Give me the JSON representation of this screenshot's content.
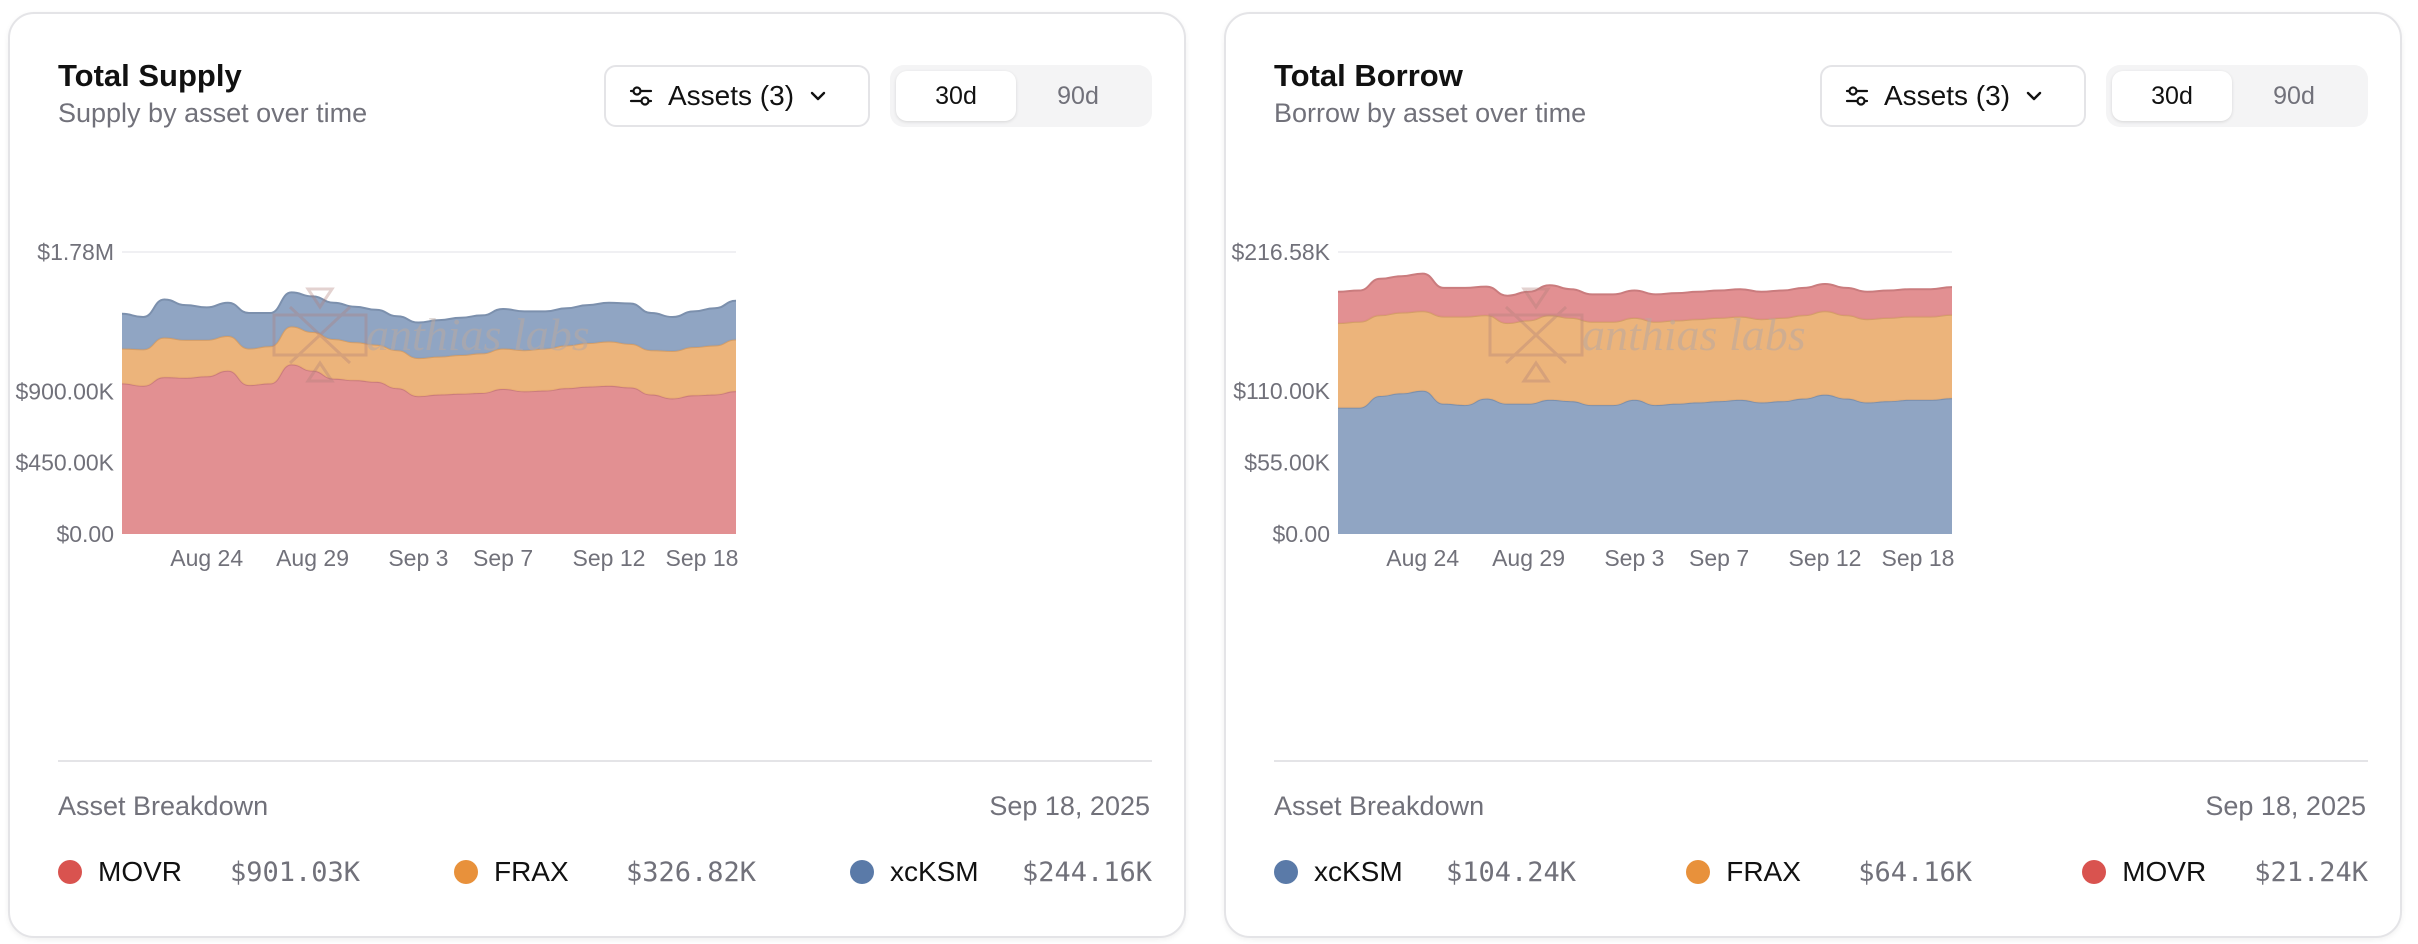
{
  "panels": [
    {
      "id": "supply",
      "title": "Total Supply",
      "subtitle": "Supply by asset over time",
      "assets_label": "Assets (3)",
      "ranges": [
        "30d",
        "90d"
      ],
      "active_range": "30d",
      "breakdown_label": "Asset Breakdown",
      "breakdown_date": "Sep 18, 2025",
      "legend": [
        {
          "name": "MOVR",
          "value": "$901.03K",
          "color": "#d9534f"
        },
        {
          "name": "FRAX",
          "value": "$326.82K",
          "color": "#e8913b"
        },
        {
          "name": "xcKSM",
          "value": "$244.16K",
          "color": "#5a7aa8"
        }
      ]
    },
    {
      "id": "borrow",
      "title": "Total Borrow",
      "subtitle": "Borrow by asset over time",
      "assets_label": "Assets (3)",
      "ranges": [
        "30d",
        "90d"
      ],
      "active_range": "30d",
      "breakdown_label": "Asset Breakdown",
      "breakdown_date": "Sep 18, 2025",
      "legend": [
        {
          "name": "xcKSM",
          "value": "$104.24K",
          "color": "#5a7aa8"
        },
        {
          "name": "FRAX",
          "value": "$64.16K",
          "color": "#e8913b"
        },
        {
          "name": "MOVR",
          "value": "$21.24K",
          "color": "#d9534f"
        }
      ]
    }
  ],
  "watermark": "anthias labs",
  "chart_data": [
    {
      "type": "area",
      "stacked": true,
      "title": "Total Supply",
      "x_labels": [
        "Aug 24",
        "Aug 29",
        "Sep 3",
        "Sep 7",
        "Sep 12",
        "Sep 18"
      ],
      "x_label_index": [
        4,
        9,
        14,
        18,
        23,
        28
      ],
      "y_ticks": [
        {
          "value": 0,
          "label": "$0.00"
        },
        {
          "value": 450000,
          "label": "$450.00K"
        },
        {
          "value": 900000,
          "label": "$900.00K"
        },
        {
          "value": 1780000,
          "label": "$1.78M"
        }
      ],
      "ylim": [
        0,
        1780000
      ],
      "colors": {
        "MOVR": "#e08a8c",
        "FRAX": "#ebb074",
        "xcKSM": "#8aa0c0"
      },
      "series": [
        {
          "name": "MOVR",
          "values": [
            950000,
            935000,
            990000,
            985000,
            995000,
            1030000,
            940000,
            950000,
            1070000,
            1030000,
            980000,
            970000,
            960000,
            920000,
            870000,
            880000,
            885000,
            890000,
            915000,
            900000,
            905000,
            920000,
            930000,
            935000,
            925000,
            880000,
            855000,
            875000,
            880000,
            901030
          ]
        },
        {
          "name": "FRAX",
          "values": [
            220000,
            230000,
            250000,
            240000,
            230000,
            220000,
            230000,
            235000,
            240000,
            245000,
            250000,
            240000,
            235000,
            240000,
            240000,
            240000,
            245000,
            250000,
            255000,
            260000,
            265000,
            270000,
            275000,
            280000,
            275000,
            280000,
            300000,
            305000,
            310000,
            326820
          ]
        },
        {
          "name": "xcKSM",
          "values": [
            220000,
            205000,
            240000,
            220000,
            205000,
            210000,
            225000,
            210000,
            215000,
            225000,
            230000,
            225000,
            220000,
            215000,
            225000,
            230000,
            235000,
            240000,
            250000,
            245000,
            235000,
            235000,
            240000,
            245000,
            255000,
            235000,
            215000,
            225000,
            235000,
            244160
          ]
        }
      ]
    },
    {
      "type": "area",
      "stacked": true,
      "title": "Total Borrow",
      "x_labels": [
        "Aug 24",
        "Aug 29",
        "Sep 3",
        "Sep 7",
        "Sep 12",
        "Sep 18"
      ],
      "x_label_index": [
        4,
        9,
        14,
        18,
        23,
        28
      ],
      "y_ticks": [
        {
          "value": 0,
          "label": "$0.00"
        },
        {
          "value": 55000,
          "label": "$55.00K"
        },
        {
          "value": 110000,
          "label": "$110.00K"
        },
        {
          "value": 216580,
          "label": "$216.58K"
        }
      ],
      "ylim": [
        0,
        216580
      ],
      "colors": {
        "xcKSM": "#8aa0c0",
        "FRAX": "#ebb074",
        "MOVR": "#e08a8c"
      },
      "series": [
        {
          "name": "xcKSM",
          "values": [
            97000,
            97000,
            106000,
            108000,
            110000,
            100000,
            99000,
            104000,
            100000,
            100000,
            103000,
            102000,
            99000,
            99000,
            103000,
            99000,
            100000,
            101000,
            102000,
            103000,
            101000,
            102000,
            104000,
            107000,
            104000,
            101000,
            102000,
            103000,
            103000,
            104240
          ]
        },
        {
          "name": "FRAX",
          "values": [
            65000,
            66000,
            62000,
            62000,
            61000,
            67000,
            68000,
            64000,
            62000,
            64000,
            65000,
            64000,
            64000,
            64000,
            63000,
            64000,
            64000,
            64000,
            64000,
            64000,
            64000,
            64000,
            64000,
            64000,
            64000,
            64000,
            64000,
            64000,
            64000,
            64160
          ]
        },
        {
          "name": "MOVR",
          "values": [
            24000,
            24000,
            28000,
            28000,
            29000,
            22000,
            22000,
            22000,
            21000,
            22000,
            23000,
            22000,
            21000,
            21000,
            21000,
            21000,
            21000,
            21000,
            21000,
            21000,
            21000,
            21000,
            21000,
            21000,
            21000,
            21000,
            21000,
            21000,
            21000,
            21240
          ]
        }
      ]
    }
  ]
}
